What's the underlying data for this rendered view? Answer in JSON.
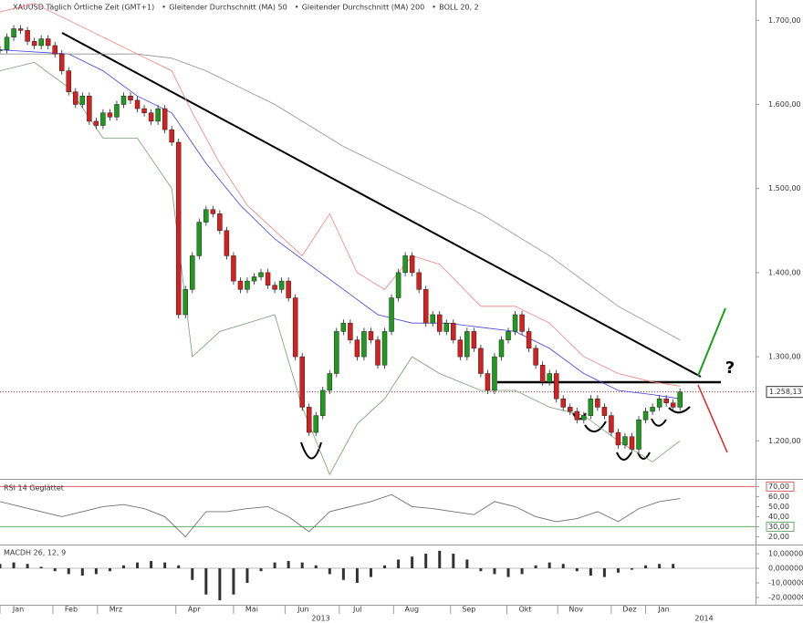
{
  "chart_data": [
    {
      "type": "candlestick",
      "title": "XAUUSD Täglich Örtliche Zeit (GMT+1)",
      "up_color": "#1f9a1f",
      "down_color": "#d62020",
      "x": [
        0,
        1,
        2,
        3,
        4,
        5,
        6,
        7,
        8,
        9,
        10,
        11,
        12,
        13,
        14,
        15,
        16,
        17,
        18,
        19,
        20,
        21,
        22,
        23,
        24,
        25,
        26,
        27,
        28,
        29,
        30,
        31,
        32,
        33,
        34,
        35,
        36,
        37,
        38,
        39,
        40,
        41,
        42,
        43,
        44,
        45,
        46,
        47,
        48,
        49,
        50,
        51,
        52,
        53,
        54,
        55,
        56,
        57,
        58,
        59,
        60,
        61,
        62,
        63,
        64,
        65,
        66,
        67,
        68,
        69,
        70,
        71,
        72,
        73,
        74,
        75,
        76,
        77,
        78,
        79,
        80,
        81,
        82,
        83,
        84,
        85,
        86,
        87,
        88,
        89,
        90,
        91,
        92,
        93,
        94,
        95,
        96,
        97,
        98,
        99
      ],
      "values": [
        1665,
        1680,
        1690,
        1688,
        1675,
        1670,
        1678,
        1670,
        1660,
        1640,
        1615,
        1600,
        1610,
        1580,
        1575,
        1590,
        1585,
        1600,
        1610,
        1605,
        1595,
        1590,
        1580,
        1595,
        1570,
        1555,
        1350,
        1380,
        1420,
        1460,
        1475,
        1470,
        1450,
        1420,
        1390,
        1380,
        1390,
        1395,
        1400,
        1385,
        1380,
        1390,
        1370,
        1300,
        1240,
        1210,
        1230,
        1260,
        1280,
        1330,
        1340,
        1320,
        1300,
        1330,
        1320,
        1290,
        1330,
        1370,
        1400,
        1420,
        1400,
        1380,
        1340,
        1350,
        1330,
        1340,
        1320,
        1300,
        1330,
        1310,
        1280,
        1260,
        1300,
        1320,
        1330,
        1350,
        1330,
        1310,
        1290,
        1270,
        1280,
        1250,
        1240,
        1235,
        1225,
        1230,
        1250,
        1240,
        1230,
        1210,
        1195,
        1205,
        1190,
        1225,
        1235,
        1240,
        1250,
        1245,
        1240,
        1258.13
      ],
      "series": [
        {
          "name": "Gleitender Durchschnitt (MA) 50",
          "color": "#4040e0",
          "x": [
            0,
            10,
            15,
            20,
            25,
            30,
            35,
            40,
            45,
            50,
            55,
            60,
            65,
            70,
            75,
            80,
            85,
            90,
            95,
            99
          ],
          "values": [
            1665,
            1660,
            1640,
            1610,
            1590,
            1530,
            1480,
            1440,
            1410,
            1380,
            1350,
            1340,
            1340,
            1335,
            1330,
            1310,
            1280,
            1260,
            1255,
            1250
          ]
        },
        {
          "name": "Gleitender Durchschnitt (MA) 200",
          "color": "#909090",
          "x": [
            0,
            10,
            20,
            25,
            30,
            40,
            50,
            60,
            70,
            80,
            90,
            99
          ],
          "values": [
            1660,
            1660,
            1660,
            1655,
            1640,
            1600,
            1550,
            1510,
            1470,
            1420,
            1360,
            1320
          ]
        },
        {
          "name": "BOLL 20, 2",
          "color": "#f08080",
          "lower_color": "#7a9a7a",
          "x": [
            0,
            5,
            10,
            15,
            20,
            25,
            28,
            32,
            36,
            40,
            44,
            48,
            52,
            56,
            60,
            64,
            70,
            75,
            80,
            85,
            90,
            95,
            99
          ],
          "upper": [
            1710,
            1720,
            1700,
            1680,
            1660,
            1640,
            1590,
            1530,
            1480,
            1450,
            1420,
            1470,
            1400,
            1380,
            1420,
            1410,
            1360,
            1360,
            1340,
            1300,
            1280,
            1270,
            1265
          ],
          "lower": [
            1640,
            1650,
            1620,
            1560,
            1560,
            1500,
            1300,
            1330,
            1340,
            1350,
            1240,
            1160,
            1220,
            1250,
            1300,
            1280,
            1260,
            1260,
            1240,
            1230,
            1200,
            1175,
            1200
          ]
        }
      ],
      "ylim": [
        1158,
        1722
      ],
      "yticks": [
        {
          "value": 1200,
          "label": "1.200,00"
        },
        {
          "value": 1300,
          "label": "1.300,00"
        },
        {
          "value": 1400,
          "label": "1.400,00"
        },
        {
          "value": 1500,
          "label": "1.500,00"
        },
        {
          "value": 1600,
          "label": "1.600,00"
        },
        {
          "value": 1700,
          "label": "1.700,00"
        }
      ],
      "xlim": [
        0,
        110
      ],
      "xticks": [
        {
          "value": 0,
          "label": "Jan"
        },
        {
          "value": 7.7,
          "label": "Feb"
        },
        {
          "value": 14.2,
          "label": "Mrz"
        },
        {
          "value": 25.6,
          "label": "Apr"
        },
        {
          "value": 34,
          "label": "Mai"
        },
        {
          "value": 41.5,
          "label": "Jun"
        },
        {
          "value": 49.4,
          "label": "Jul"
        },
        {
          "value": 57.3,
          "label": "Aug"
        },
        {
          "value": 65.6,
          "label": "Sep"
        },
        {
          "value": 73.8,
          "label": "Okt"
        },
        {
          "value": 81.2,
          "label": "Nov"
        },
        {
          "value": 89,
          "label": "Dez"
        },
        {
          "value": 94,
          "label": "Jan"
        }
      ],
      "x_period_labels": [
        {
          "value": 46.7,
          "label": "2013"
        },
        {
          "value": 102.5,
          "label": "2014"
        }
      ],
      "last_value": {
        "value": 1258.13,
        "label": "1.258,13"
      },
      "annotations": [
        "?"
      ]
    },
    {
      "type": "line",
      "title": "RSI 14 Geglättet",
      "color": "#707070",
      "x": [
        0,
        3,
        6,
        9,
        12,
        15,
        18,
        21,
        24,
        27,
        30,
        33,
        36,
        39,
        42,
        45,
        48,
        51,
        54,
        57,
        60,
        63,
        66,
        69,
        72,
        75,
        78,
        81,
        84,
        87,
        90,
        93,
        96,
        99
      ],
      "values": [
        55,
        50,
        45,
        40,
        45,
        50,
        52,
        48,
        40,
        20,
        45,
        45,
        48,
        50,
        40,
        25,
        45,
        50,
        55,
        62,
        50,
        48,
        45,
        42,
        55,
        50,
        40,
        35,
        38,
        45,
        35,
        48,
        55,
        58
      ],
      "ylim": [
        14,
        74
      ],
      "yticks": [
        {
          "value": 20,
          "label": "20,00"
        },
        {
          "value": 30,
          "label": "30,00"
        },
        {
          "value": 40,
          "label": "40,00"
        },
        {
          "value": 50,
          "label": "50,00"
        },
        {
          "value": 60,
          "label": "60,00"
        },
        {
          "value": 70,
          "label": "70,00"
        }
      ],
      "levels": [
        {
          "value": 70,
          "color": "#e06060"
        },
        {
          "value": 30,
          "color": "#60b060"
        }
      ]
    },
    {
      "type": "bar",
      "title": "MACDH 26, 12, 9",
      "color": "#333333",
      "x": [
        0,
        2,
        4,
        6,
        8,
        10,
        12,
        14,
        16,
        18,
        20,
        22,
        24,
        26,
        28,
        30,
        32,
        34,
        36,
        38,
        40,
        42,
        44,
        46,
        48,
        50,
        52,
        54,
        56,
        58,
        60,
        62,
        64,
        66,
        68,
        70,
        72,
        74,
        76,
        78,
        80,
        82,
        84,
        86,
        88,
        90,
        92,
        94,
        96,
        98
      ],
      "values": [
        3,
        4,
        3,
        1,
        -2,
        -4,
        -5,
        -4,
        -2,
        2,
        4,
        5,
        4,
        2,
        -8,
        -18,
        -22,
        -18,
        -10,
        -2,
        4,
        5,
        4,
        2,
        -4,
        -8,
        -10,
        -6,
        2,
        6,
        8,
        10,
        12,
        10,
        6,
        -2,
        -4,
        -6,
        -4,
        2,
        4,
        3,
        -2,
        -5,
        -6,
        -3,
        -1,
        2,
        3,
        3
      ],
      "ylim": [
        -24.4,
        14.4
      ],
      "yticks": [
        {
          "value": 10,
          "label": "10,000000"
        },
        {
          "value": 0,
          "label": "0,000000"
        },
        {
          "value": -10,
          "label": "-10,000000"
        },
        {
          "value": -20,
          "label": "-20,000000"
        }
      ]
    }
  ]
}
